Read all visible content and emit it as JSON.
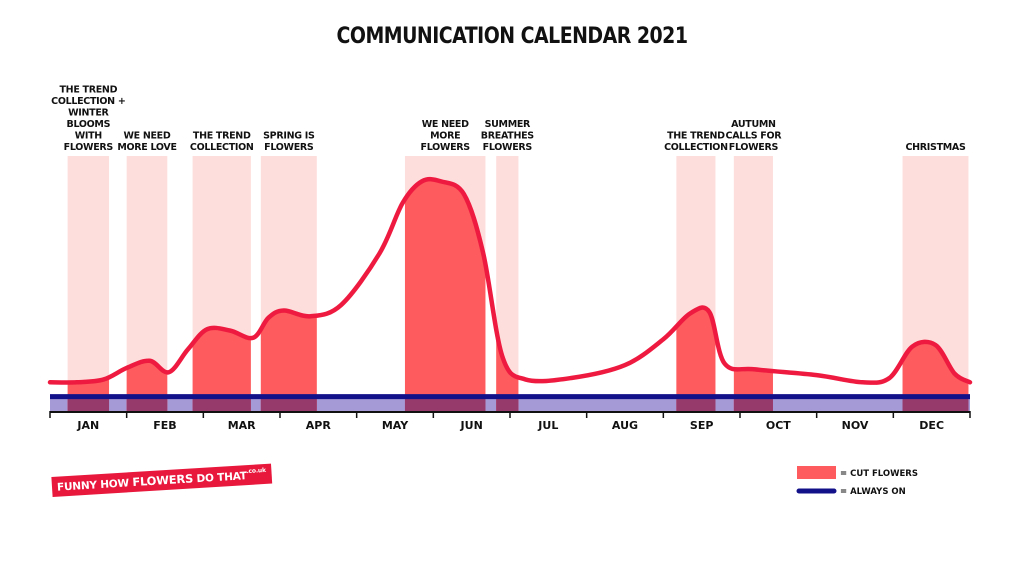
{
  "page": {
    "title": "COMMUNICATION CALENDAR 2021"
  },
  "brand": {
    "part1": "FUNNY HOW ",
    "part2": "FLOWERS",
    "part3": " DO THAT",
    "part4": ".co.uk"
  },
  "legend": [
    {
      "label": "= CUT FLOWERS",
      "color": "#fd5b5e"
    },
    {
      "label": "= ALWAYS ON",
      "color": "#13118a"
    }
  ],
  "colors": {
    "campaign_band": "#fddedc",
    "cut_flowers_fill": "#fd5b5e",
    "curve": "#ef1a40",
    "always_on_line": "#13118a",
    "always_on_fill": "#a59ad6",
    "overlap": "#963a6c",
    "axis": "#111111"
  },
  "chart_data": {
    "type": "area",
    "title": "COMMUNICATION CALENDAR 2021",
    "x_domain": [
      0,
      12
    ],
    "months": [
      "JAN",
      "FEB",
      "MAR",
      "APR",
      "MAY",
      "JUN",
      "JUL",
      "AUG",
      "SEP",
      "OCT",
      "NOV",
      "DEC"
    ],
    "always_on_level": 0,
    "baseline": -1,
    "y_range": [
      -1,
      16
    ],
    "campaigns": [
      {
        "label": "THE TREND COLLECTION + WINTER BLOOMS WITH FLOWERS",
        "lines": [
          "THE TREND",
          "COLLECTION +",
          "WINTER",
          "BLOOMS",
          "WITH",
          "FLOWERS"
        ],
        "start": 0.23,
        "end": 0.77
      },
      {
        "label": "WE NEED MORE LOVE",
        "lines": [
          "WE NEED",
          "MORE LOVE"
        ],
        "start": 1.0,
        "end": 1.53
      },
      {
        "label": "THE TREND COLLECTION",
        "lines": [
          "THE TREND",
          "COLLECTION"
        ],
        "start": 1.86,
        "end": 2.62
      },
      {
        "label": "SPRING IS FLOWERS",
        "lines": [
          "SPRING IS",
          "FLOWERS"
        ],
        "start": 2.75,
        "end": 3.48
      },
      {
        "label": "WE NEED MORE FLOWERS",
        "lines": [
          "WE NEED",
          "MORE",
          "FLOWERS"
        ],
        "start": 4.63,
        "end": 5.68
      },
      {
        "label": "SUMMER BREATHES FLOWERS",
        "lines": [
          "SUMMER",
          "BREATHES",
          "FLOWERS"
        ],
        "start": 5.82,
        "end": 6.11
      },
      {
        "label": "THE TREND COLLECTION",
        "lines": [
          "THE TREND",
          "COLLECTION"
        ],
        "start": 8.17,
        "end": 8.68
      },
      {
        "label": "AUTUMN CALLS FOR FLOWERS",
        "lines": [
          "AUTUMN",
          "CALLS FOR",
          "FLOWERS"
        ],
        "start": 8.92,
        "end": 9.43
      },
      {
        "label": "CHRISTMAS",
        "lines": [
          "CHRISTMAS"
        ],
        "start": 11.12,
        "end": 11.98
      }
    ],
    "series": [
      {
        "name": "CUT FLOWERS",
        "x": [
          0,
          0.35,
          0.7,
          1.0,
          1.3,
          1.55,
          1.8,
          2.05,
          2.35,
          2.65,
          2.85,
          3.05,
          3.4,
          3.8,
          4.3,
          4.6,
          4.85,
          5.1,
          5.4,
          5.65,
          5.9,
          6.2,
          6.8,
          7.5,
          8.0,
          8.35,
          8.6,
          8.8,
          9.2,
          10.0,
          10.6,
          10.95,
          11.25,
          11.55,
          11.8,
          12.0
        ],
        "y": [
          1.0,
          1.0,
          1.2,
          2.0,
          2.5,
          1.7,
          3.3,
          4.7,
          4.6,
          4.1,
          5.5,
          6.0,
          5.6,
          6.4,
          10.0,
          13.5,
          15.0,
          15.0,
          14.1,
          10.0,
          2.8,
          1.2,
          1.3,
          2.2,
          4.0,
          5.8,
          5.9,
          2.3,
          1.9,
          1.5,
          1.0,
          1.3,
          3.5,
          3.6,
          1.6,
          1.0
        ]
      },
      {
        "name": "ALWAYS ON",
        "level": 0
      }
    ]
  }
}
